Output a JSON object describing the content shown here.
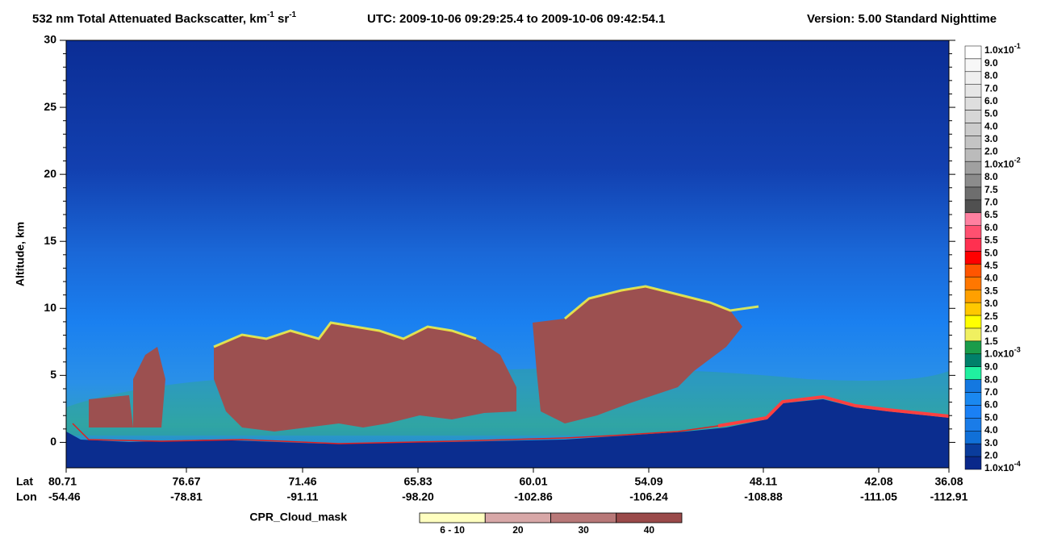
{
  "chart_data": {
    "type": "curtain",
    "title_parts": [
      "532 nm Total Attenuated Backscatter, km",
      "-1",
      " sr",
      "-1"
    ],
    "utc": "UTC:  2009-10-06 09:29:25.4  to  2009-10-06 09:42:54.1",
    "version": "Version: 5.00  Standard  Nighttime",
    "ylabel": "Altitude, km",
    "ylim": [
      -1.9,
      30
    ],
    "yticks": [
      0,
      5,
      10,
      15,
      20,
      25,
      30
    ],
    "x_row_labels": [
      "Lat",
      "Lon"
    ],
    "lat": [
      "80.71",
      "76.67",
      "71.46",
      "65.83",
      "60.01",
      "54.09",
      "48.11",
      "42.08",
      "36.08"
    ],
    "lon": [
      "-54.46",
      "-78.81",
      "-91.11",
      "-98.20",
      "-102.86",
      "-106.24",
      "-108.88",
      "-111.05",
      "-112.91"
    ],
    "colorbar": {
      "labels": [
        {
          "text": "1.0x10",
          "sup": "-1"
        },
        "9.0",
        "8.0",
        "7.0",
        "6.0",
        "5.0",
        "4.0",
        "3.0",
        "2.0",
        {
          "text": "1.0x10",
          "sup": "-2"
        },
        "8.0",
        "7.5",
        "7.0",
        "6.5",
        "6.0",
        "5.5",
        "5.0",
        "4.5",
        "4.0",
        "3.5",
        "3.0",
        "2.5",
        "2.0",
        "1.5",
        {
          "text": "1.0x10",
          "sup": "-3"
        },
        "9.0",
        "8.0",
        "7.0",
        "6.0",
        "5.0",
        "4.0",
        "3.0",
        "2.0",
        {
          "text": "1.0x10",
          "sup": "-4"
        }
      ],
      "colors": [
        "#ffffff",
        "#f7f7f7",
        "#efefef",
        "#e6e6e6",
        "#dedede",
        "#d6d6d6",
        "#cccccc",
        "#c4c4c4",
        "#bbbbbb",
        "#a0a0a0",
        "#8c8c8c",
        "#6e6e6e",
        "#505050",
        "#ff80a0",
        "#ff5070",
        "#ff3050",
        "#ff0000",
        "#ff5500",
        "#ff7700",
        "#ffa000",
        "#ffc800",
        "#ffff00",
        "#f0f060",
        "#1a9c4a",
        "#00806a",
        "#20f0a0",
        "#1478e0",
        "#1a88f0",
        "#1a80f5",
        "#1a7ce8",
        "#1070d8",
        "#0a3c9c",
        "#0a288a"
      ]
    },
    "cpr_legend": {
      "label": "CPR_Cloud_mask",
      "categories": [
        "6 - 10",
        "20",
        "30",
        "40"
      ],
      "colors": [
        "#ffffc0",
        "#d8a8a8",
        "#b87878",
        "#9a4a4a"
      ]
    }
  }
}
